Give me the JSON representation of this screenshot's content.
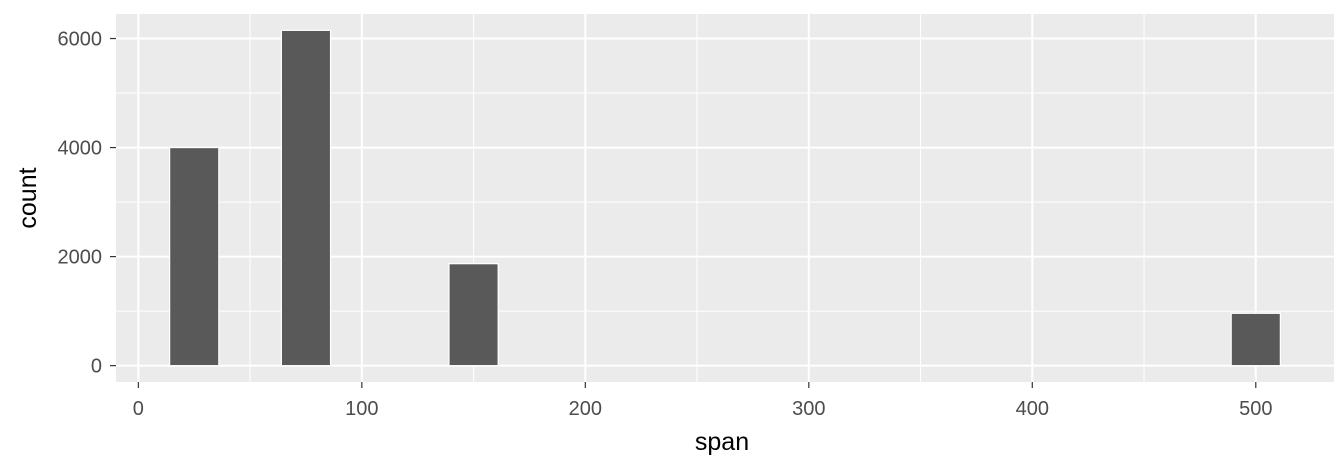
{
  "chart_data": {
    "type": "bar",
    "subtype": "histogram",
    "xlabel": "span",
    "ylabel": "count",
    "xlim": [
      -10,
      535
    ],
    "ylim": [
      -300,
      6450
    ],
    "x_ticks": [
      0,
      100,
      200,
      300,
      400,
      500
    ],
    "y_ticks": [
      0,
      2000,
      4000,
      6000
    ],
    "bin_width": 22,
    "bins": [
      {
        "center": 25,
        "count": 4000
      },
      {
        "center": 75,
        "count": 6150
      },
      {
        "center": 150,
        "count": 1870
      },
      {
        "center": 500,
        "count": 960
      }
    ],
    "grid": true,
    "legend": "none",
    "colors": {
      "panel_bg": "#ebebeb",
      "grid": "#ffffff",
      "bar_fill": "#595959",
      "bar_outline": "#ffffff",
      "tick_text": "#4d4d4d",
      "tick_mark": "#333333",
      "title_text": "#000000"
    }
  }
}
